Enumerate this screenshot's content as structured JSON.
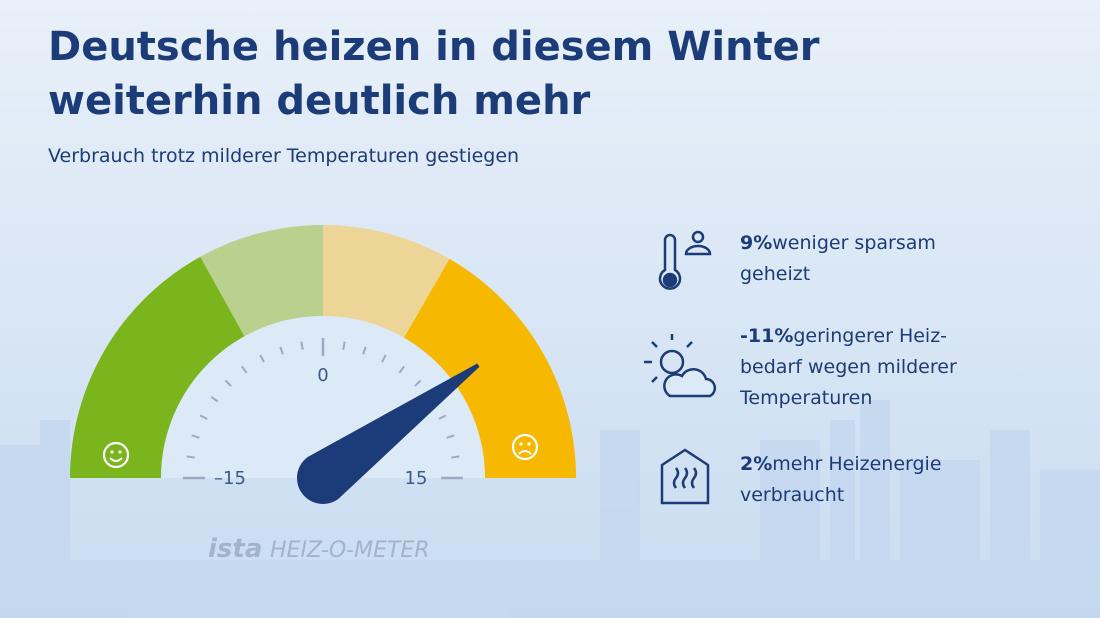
{
  "header": {
    "title_lines": [
      "Deutsche heizen in diesem Winter",
      "weiterhin deutlich mehr"
    ],
    "subtitle": "Verbrauch trotz milderer Temperaturen gestiegen"
  },
  "gauge": {
    "range": [
      -15,
      15
    ],
    "ticks": [
      {
        "value": -15,
        "label": "–15"
      },
      0,
      15
    ],
    "needle": 9,
    "brand": "ista",
    "name": "HEIZ-O-METER"
  },
  "facts": [
    {
      "highlight": "9%",
      "lines": [
        "weniger sparsam",
        "geheizt"
      ]
    },
    {
      "highlight": "-11%",
      "lines": [
        "geringerer Heiz-",
        "bedarf wegen milderer",
        "Temperaturen"
      ]
    },
    {
      "highlight": "2%",
      "lines": [
        "mehr Heizenergie",
        "verbraucht"
      ]
    }
  ]
}
